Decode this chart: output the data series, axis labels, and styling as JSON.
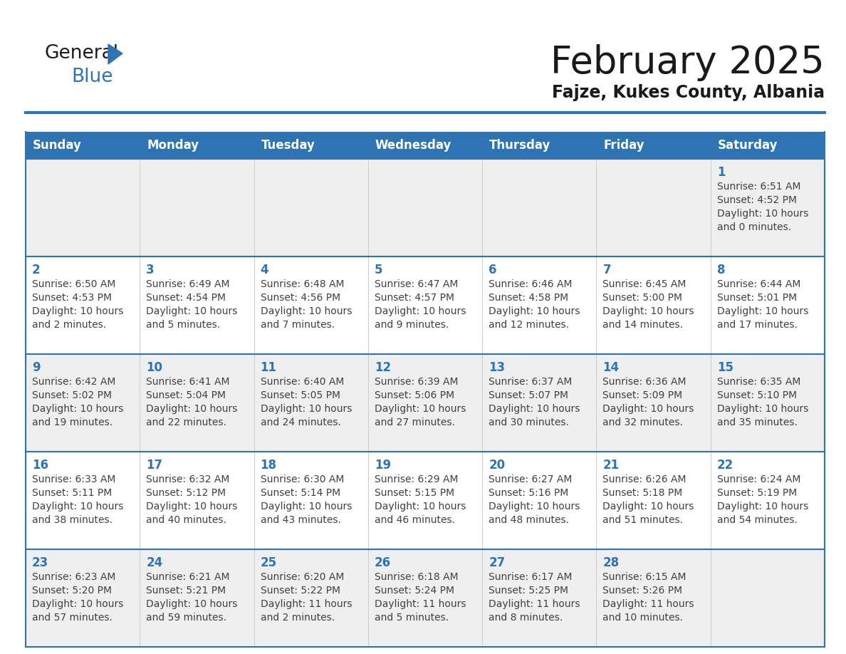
{
  "title": "February 2025",
  "subtitle": "Fajze, Kukes County, Albania",
  "days_of_week": [
    "Sunday",
    "Monday",
    "Tuesday",
    "Wednesday",
    "Thursday",
    "Friday",
    "Saturday"
  ],
  "header_bg": "#2E74B5",
  "header_text": "#FFFFFF",
  "cell_bg_odd": "#EFEFEF",
  "cell_bg_even": "#FFFFFF",
  "divider_color": "#2E74B5",
  "text_color": "#404040",
  "day_number_color": "#2E74B5",
  "calendar_data": [
    [
      null,
      null,
      null,
      null,
      null,
      null,
      {
        "day": 1,
        "sunrise": "6:51 AM",
        "sunset": "4:52 PM",
        "daylight_hours": 10,
        "daylight_minutes": 0
      }
    ],
    [
      {
        "day": 2,
        "sunrise": "6:50 AM",
        "sunset": "4:53 PM",
        "daylight_hours": 10,
        "daylight_minutes": 2
      },
      {
        "day": 3,
        "sunrise": "6:49 AM",
        "sunset": "4:54 PM",
        "daylight_hours": 10,
        "daylight_minutes": 5
      },
      {
        "day": 4,
        "sunrise": "6:48 AM",
        "sunset": "4:56 PM",
        "daylight_hours": 10,
        "daylight_minutes": 7
      },
      {
        "day": 5,
        "sunrise": "6:47 AM",
        "sunset": "4:57 PM",
        "daylight_hours": 10,
        "daylight_minutes": 9
      },
      {
        "day": 6,
        "sunrise": "6:46 AM",
        "sunset": "4:58 PM",
        "daylight_hours": 10,
        "daylight_minutes": 12
      },
      {
        "day": 7,
        "sunrise": "6:45 AM",
        "sunset": "5:00 PM",
        "daylight_hours": 10,
        "daylight_minutes": 14
      },
      {
        "day": 8,
        "sunrise": "6:44 AM",
        "sunset": "5:01 PM",
        "daylight_hours": 10,
        "daylight_minutes": 17
      }
    ],
    [
      {
        "day": 9,
        "sunrise": "6:42 AM",
        "sunset": "5:02 PM",
        "daylight_hours": 10,
        "daylight_minutes": 19
      },
      {
        "day": 10,
        "sunrise": "6:41 AM",
        "sunset": "5:04 PM",
        "daylight_hours": 10,
        "daylight_minutes": 22
      },
      {
        "day": 11,
        "sunrise": "6:40 AM",
        "sunset": "5:05 PM",
        "daylight_hours": 10,
        "daylight_minutes": 24
      },
      {
        "day": 12,
        "sunrise": "6:39 AM",
        "sunset": "5:06 PM",
        "daylight_hours": 10,
        "daylight_minutes": 27
      },
      {
        "day": 13,
        "sunrise": "6:37 AM",
        "sunset": "5:07 PM",
        "daylight_hours": 10,
        "daylight_minutes": 30
      },
      {
        "day": 14,
        "sunrise": "6:36 AM",
        "sunset": "5:09 PM",
        "daylight_hours": 10,
        "daylight_minutes": 32
      },
      {
        "day": 15,
        "sunrise": "6:35 AM",
        "sunset": "5:10 PM",
        "daylight_hours": 10,
        "daylight_minutes": 35
      }
    ],
    [
      {
        "day": 16,
        "sunrise": "6:33 AM",
        "sunset": "5:11 PM",
        "daylight_hours": 10,
        "daylight_minutes": 38
      },
      {
        "day": 17,
        "sunrise": "6:32 AM",
        "sunset": "5:12 PM",
        "daylight_hours": 10,
        "daylight_minutes": 40
      },
      {
        "day": 18,
        "sunrise": "6:30 AM",
        "sunset": "5:14 PM",
        "daylight_hours": 10,
        "daylight_minutes": 43
      },
      {
        "day": 19,
        "sunrise": "6:29 AM",
        "sunset": "5:15 PM",
        "daylight_hours": 10,
        "daylight_minutes": 46
      },
      {
        "day": 20,
        "sunrise": "6:27 AM",
        "sunset": "5:16 PM",
        "daylight_hours": 10,
        "daylight_minutes": 48
      },
      {
        "day": 21,
        "sunrise": "6:26 AM",
        "sunset": "5:18 PM",
        "daylight_hours": 10,
        "daylight_minutes": 51
      },
      {
        "day": 22,
        "sunrise": "6:24 AM",
        "sunset": "5:19 PM",
        "daylight_hours": 10,
        "daylight_minutes": 54
      }
    ],
    [
      {
        "day": 23,
        "sunrise": "6:23 AM",
        "sunset": "5:20 PM",
        "daylight_hours": 10,
        "daylight_minutes": 57
      },
      {
        "day": 24,
        "sunrise": "6:21 AM",
        "sunset": "5:21 PM",
        "daylight_hours": 10,
        "daylight_minutes": 59
      },
      {
        "day": 25,
        "sunrise": "6:20 AM",
        "sunset": "5:22 PM",
        "daylight_hours": 11,
        "daylight_minutes": 2
      },
      {
        "day": 26,
        "sunrise": "6:18 AM",
        "sunset": "5:24 PM",
        "daylight_hours": 11,
        "daylight_minutes": 5
      },
      {
        "day": 27,
        "sunrise": "6:17 AM",
        "sunset": "5:25 PM",
        "daylight_hours": 11,
        "daylight_minutes": 8
      },
      {
        "day": 28,
        "sunrise": "6:15 AM",
        "sunset": "5:26 PM",
        "daylight_hours": 11,
        "daylight_minutes": 10
      },
      null
    ]
  ]
}
